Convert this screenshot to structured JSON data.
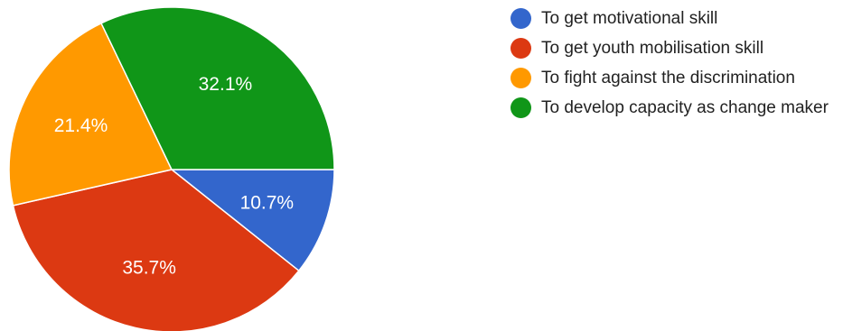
{
  "chart_data": {
    "type": "pie",
    "slices": [
      {
        "label": "To get motivational skill",
        "value": 10.7,
        "display": "10.7%",
        "color": "#3366cc"
      },
      {
        "label": "To get youth mobilisation skill",
        "value": 35.7,
        "display": "35.7%",
        "color": "#dc3912"
      },
      {
        "label": "To fight against the discrimination",
        "value": 21.4,
        "display": "21.4%",
        "color": "#ff9900"
      },
      {
        "label": "To develop capacity as change maker",
        "value": 32.1,
        "display": "32.1%",
        "color": "#109618"
      }
    ],
    "start_direction": "3 o'clock",
    "order": "clockwise",
    "legend_position": "right"
  }
}
